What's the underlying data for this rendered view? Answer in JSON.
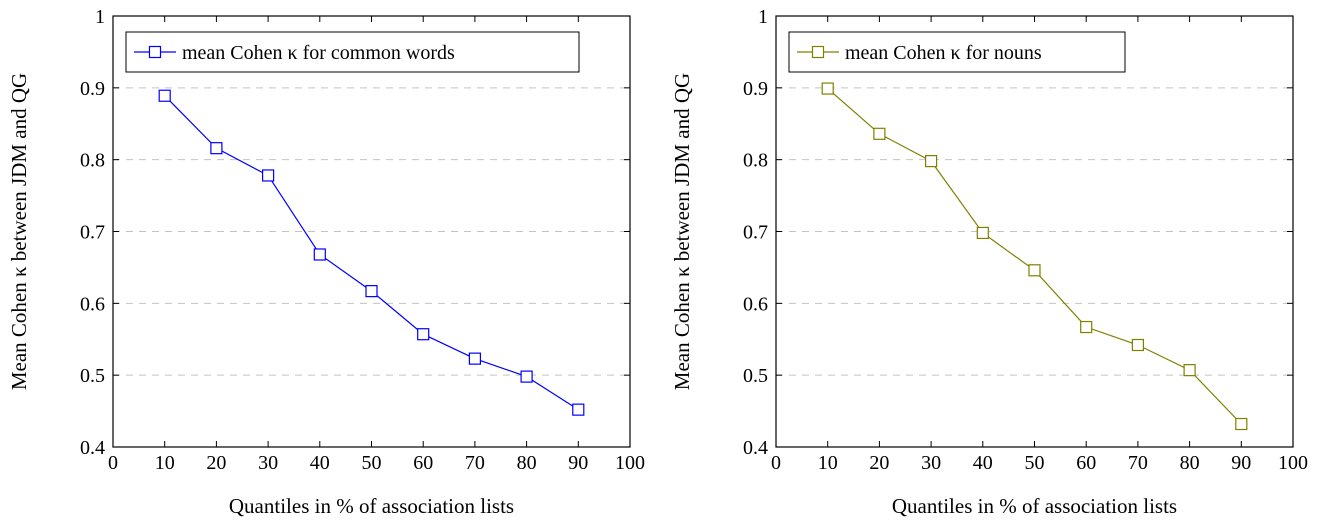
{
  "chart_data": [
    {
      "type": "line",
      "x": [
        10,
        20,
        30,
        40,
        50,
        60,
        70,
        80,
        90
      ],
      "series": [
        {
          "name": "mean Cohen κ for common words",
          "values": [
            0.889,
            0.816,
            0.778,
            0.668,
            0.617,
            0.557,
            0.523,
            0.498,
            0.452
          ],
          "color": "#0000ff",
          "marker": "square"
        }
      ],
      "xlabel": "Quantiles in % of association lists",
      "ylabel": "Mean Cohen κ between JDM and QG",
      "xlim": [
        0,
        100
      ],
      "ylim": [
        0.4,
        1
      ],
      "xticks": [
        "0",
        "10",
        "20",
        "30",
        "40",
        "50",
        "60",
        "70",
        "80",
        "90",
        "100"
      ],
      "yticks": [
        "0.4",
        "0.5",
        "0.6",
        "0.7",
        "0.8",
        "0.9",
        "1"
      ],
      "grid": "horizontal dashed",
      "legend_position": "top-left"
    },
    {
      "type": "line",
      "x": [
        10,
        20,
        30,
        40,
        50,
        60,
        70,
        80,
        90
      ],
      "series": [
        {
          "name": "mean Cohen κ for nouns",
          "values": [
            0.899,
            0.836,
            0.798,
            0.698,
            0.646,
            0.567,
            0.542,
            0.507,
            0.432
          ],
          "color": "#808000",
          "marker": "square"
        }
      ],
      "xlabel": "Quantiles in % of association lists",
      "ylabel": "Mean Cohen κ between JDM and QG",
      "xlim": [
        0,
        100
      ],
      "ylim": [
        0.4,
        1
      ],
      "xticks": [
        "0",
        "10",
        "20",
        "30",
        "40",
        "50",
        "60",
        "70",
        "80",
        "90",
        "100"
      ],
      "yticks": [
        "0.4",
        "0.5",
        "0.6",
        "0.7",
        "0.8",
        "0.9",
        "1"
      ],
      "grid": "horizontal dashed",
      "legend_position": "top-left"
    }
  ]
}
